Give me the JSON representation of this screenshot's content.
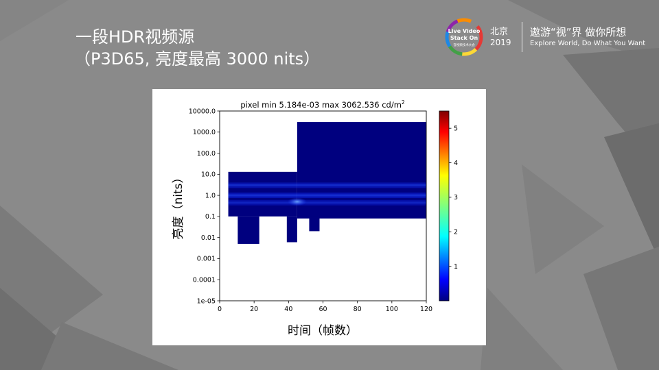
{
  "slide": {
    "title_line1": "一段HDR视频源",
    "title_line2": "（P3D65, 亮度最高 3000 nits）"
  },
  "logo": {
    "ring_text_line1": "Live Video",
    "ring_text_line2": "Stack On",
    "ring_text_line3": "音视频技术大会",
    "city": "北京",
    "year": "2019",
    "slogan_cn": "遨游“视”界  做你所想",
    "slogan_en": "Explore World, Do What You Want"
  },
  "colors": {
    "background": "#8a8a8a",
    "cmap_low": "#00007f",
    "cmap_high": "#7f0000"
  },
  "chart_data": {
    "type": "heatmap",
    "title": "pixel min 5.184e-03 max 3062.536 cd/m",
    "title_superscript": "2",
    "xlabel": "时间（帧数）",
    "ylabel": "亮度（nits）",
    "xlim": [
      0,
      120
    ],
    "ylim": [
      1e-05,
      10000
    ],
    "yscale": "log",
    "x_ticks": [
      "0",
      "20",
      "40",
      "60",
      "80",
      "100",
      "120"
    ],
    "y_ticks": [
      "10000.0",
      "1000.0",
      "100.0",
      "10.0",
      "1.0",
      "0.1",
      "0.01",
      "0.001",
      "0.0001",
      "1e-05"
    ],
    "colorbar": {
      "ticks": [
        "1",
        "2",
        "3",
        "4",
        "5"
      ],
      "range": [
        0,
        5.5
      ]
    },
    "regions": [
      {
        "x0": 5,
        "x1": 45,
        "ymin": 0.1,
        "ymax": 13
      },
      {
        "x0": 10.5,
        "x1": 23,
        "ymin": 0.005,
        "ymax": 0.1
      },
      {
        "x0": 39,
        "x1": 45,
        "ymin": 0.006,
        "ymax": 0.1
      },
      {
        "x0": 45,
        "x1": 120,
        "ymin": 0.08,
        "ymax": 3000
      },
      {
        "x0": 52,
        "x1": 58,
        "ymin": 0.02,
        "ymax": 0.1
      }
    ],
    "bright_bands": [
      {
        "y": 3.0,
        "intensity": 0.35
      },
      {
        "y": 1.0,
        "intensity": 0.4
      },
      {
        "y": 0.45,
        "intensity": 0.3
      }
    ],
    "hotspot": {
      "x": 45,
      "y": 0.5
    }
  }
}
